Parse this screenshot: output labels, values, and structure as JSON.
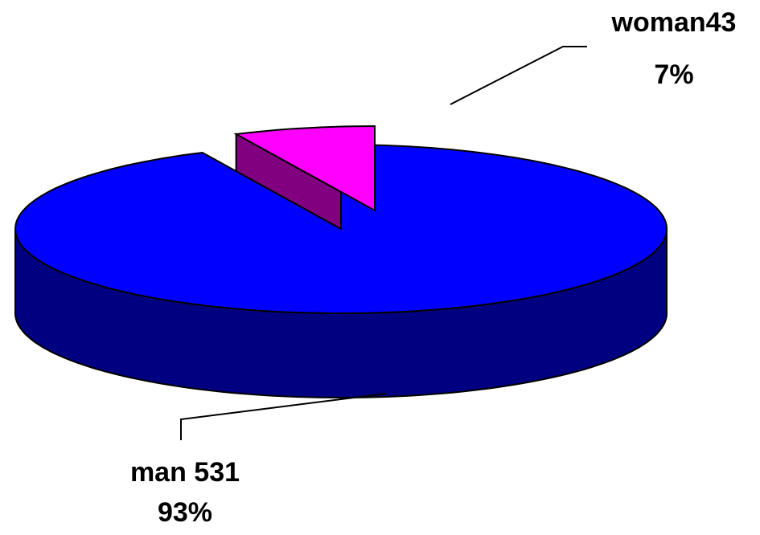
{
  "chart_data": {
    "type": "pie3d",
    "categories": [
      "man 531",
      "woman43"
    ],
    "values": [
      93,
      7
    ],
    "value_labels": [
      "93%",
      "7%"
    ],
    "series_colors": [
      "#0000ff",
      "#ff00ff"
    ],
    "side_colors": [
      "#000080",
      "#800080"
    ],
    "explode": [
      false,
      true
    ]
  }
}
